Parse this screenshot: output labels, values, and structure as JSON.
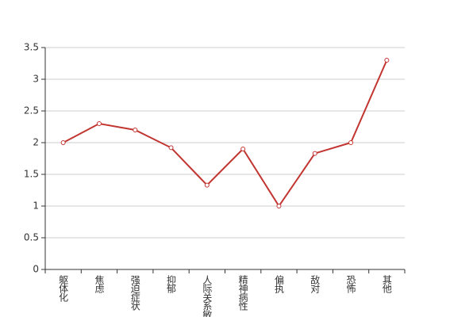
{
  "chart_data": {
    "type": "line",
    "categories": [
      "躯体化",
      "焦虑",
      "强迫症状",
      "抑郁",
      "人际关系敏感",
      "精神病性",
      "偏执",
      "敌对",
      "恐怖",
      "其他"
    ],
    "values": [
      2.0,
      2.3,
      2.2,
      1.92,
      1.33,
      1.9,
      1.0,
      1.83,
      2.0,
      3.3
    ],
    "color": "#c23531",
    "ylim": [
      0,
      3.5
    ],
    "yticks": [
      0,
      0.5,
      1,
      1.5,
      2,
      2.5,
      3,
      3.5
    ],
    "grid": true
  }
}
